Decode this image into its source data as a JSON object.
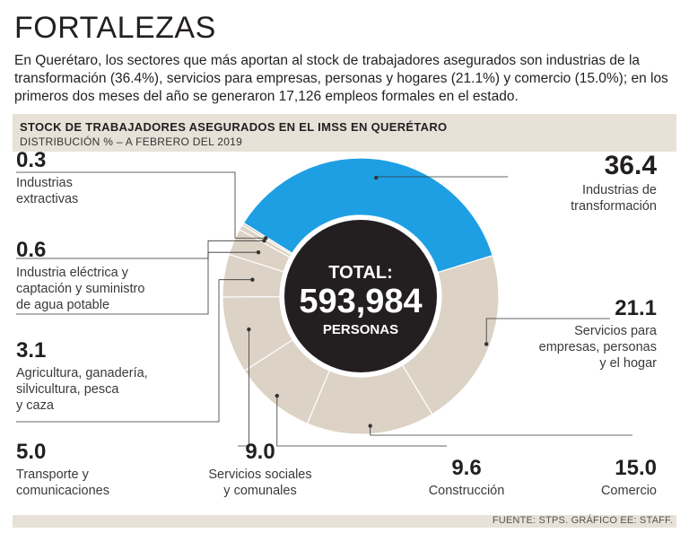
{
  "header": {
    "title": "FORTALEZAS",
    "intro": "En Querétaro, los sectores que más aportan al stock de trabajadores asegurados son industrias de la transformación (36.4%), servicios para empresas, personas y hogares (21.1%) y comercio (15.0%); en los primeros dos meses del año se generaron 17,126 empleos formales en el estado."
  },
  "section": {
    "title": "STOCK DE TRABAJADORES ASEGURADOS EN EL IMSS EN QUERÉTARO",
    "subtitle": "DISTRIBUCIÓN % – A FEBRERO DEL 2019"
  },
  "center": {
    "label": "TOTAL:",
    "value": "593,984",
    "unit": "PERSONAS"
  },
  "footer": {
    "source": "FUENTE: STPS. GRÁFICO EE: STAFF."
  },
  "colors": {
    "highlight": "#1e9fe3",
    "segment": "#dcd2c5",
    "center": "#231f20",
    "leader": "#333333"
  },
  "chart_data": {
    "type": "pie",
    "title": "STOCK DE TRABAJADORES ASEGURADOS EN EL IMSS EN QUERÉTARO",
    "subtitle": "DISTRIBUCIÓN % – A FEBRERO DEL 2019",
    "unit": "%",
    "slices": [
      {
        "label": "Industrias de transformación",
        "value": 36.4,
        "value_text": "36.4",
        "lines": [
          "Industrias de",
          "transformación"
        ],
        "highlight": true
      },
      {
        "label": "Servicios para empresas, personas y el hogar",
        "value": 21.1,
        "value_text": "21.1",
        "lines": [
          "Servicios para",
          "empresas, personas",
          "y el hogar"
        ]
      },
      {
        "label": "Comercio",
        "value": 15.0,
        "value_text": "15.0",
        "lines": [
          "Comercio"
        ]
      },
      {
        "label": "Construcción",
        "value": 9.6,
        "value_text": "9.6",
        "lines": [
          "Construcción"
        ]
      },
      {
        "label": "Servicios sociales y comunales",
        "value": 9.0,
        "value_text": "9.0",
        "lines": [
          "Servicios sociales",
          "y comunales"
        ]
      },
      {
        "label": "Transporte y comunicaciones",
        "value": 5.0,
        "value_text": "5.0",
        "lines": [
          "Transporte y",
          "comunicaciones"
        ]
      },
      {
        "label": "Agricultura, ganadería, silvicultura, pesca y caza",
        "value": 3.1,
        "value_text": "3.1",
        "lines": [
          "Agricultura, ganadería,",
          "silvicultura, pesca",
          "y caza"
        ]
      },
      {
        "label": "Industria eléctrica y captación y suministro de agua potable",
        "value": 0.6,
        "value_text": "0.6",
        "lines": [
          "Industria eléctrica y",
          "captación y suministro",
          "de agua potable"
        ]
      },
      {
        "label": "Industrias extractivas",
        "value": 0.3,
        "value_text": "0.3",
        "lines": [
          "Industrias",
          "extractivas"
        ]
      }
    ]
  }
}
